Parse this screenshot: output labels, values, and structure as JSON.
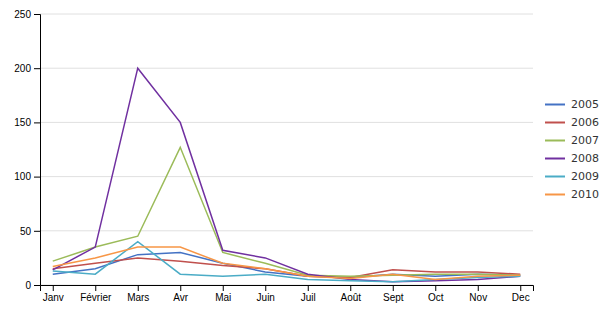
{
  "chart_data": {
    "type": "line",
    "categories": [
      "Janv",
      "Février",
      "Mars",
      "Avr",
      "Mai",
      "Juin",
      "Juil",
      "Août",
      "Sept",
      "Oct",
      "Nov",
      "Dec"
    ],
    "series": [
      {
        "name": "2005",
        "color": "#4472C4",
        "values": [
          10,
          15,
          28,
          30,
          20,
          12,
          8,
          7,
          10,
          8,
          10,
          9
        ]
      },
      {
        "name": "2006",
        "color": "#C0504D",
        "values": [
          15,
          20,
          25,
          22,
          18,
          15,
          8,
          7,
          14,
          12,
          12,
          10
        ]
      },
      {
        "name": "2007",
        "color": "#9BBB59",
        "values": [
          22,
          35,
          45,
          127,
          30,
          20,
          9,
          8,
          9,
          10,
          10,
          9
        ]
      },
      {
        "name": "2008",
        "color": "#7030A0",
        "values": [
          14,
          35,
          200,
          150,
          32,
          25,
          10,
          5,
          3,
          4,
          5,
          8
        ]
      },
      {
        "name": "2009",
        "color": "#4BACC6",
        "values": [
          13,
          10,
          40,
          10,
          8,
          10,
          5,
          4,
          3,
          5,
          7,
          8
        ]
      },
      {
        "name": "2010",
        "color": "#F79646",
        "values": [
          17,
          25,
          35,
          35,
          20,
          15,
          8,
          6,
          10,
          5,
          8,
          9
        ]
      }
    ],
    "ylim": [
      0,
      250
    ],
    "yticks": [
      0,
      50,
      100,
      150,
      200,
      250
    ],
    "grid": true,
    "legend": "right"
  }
}
